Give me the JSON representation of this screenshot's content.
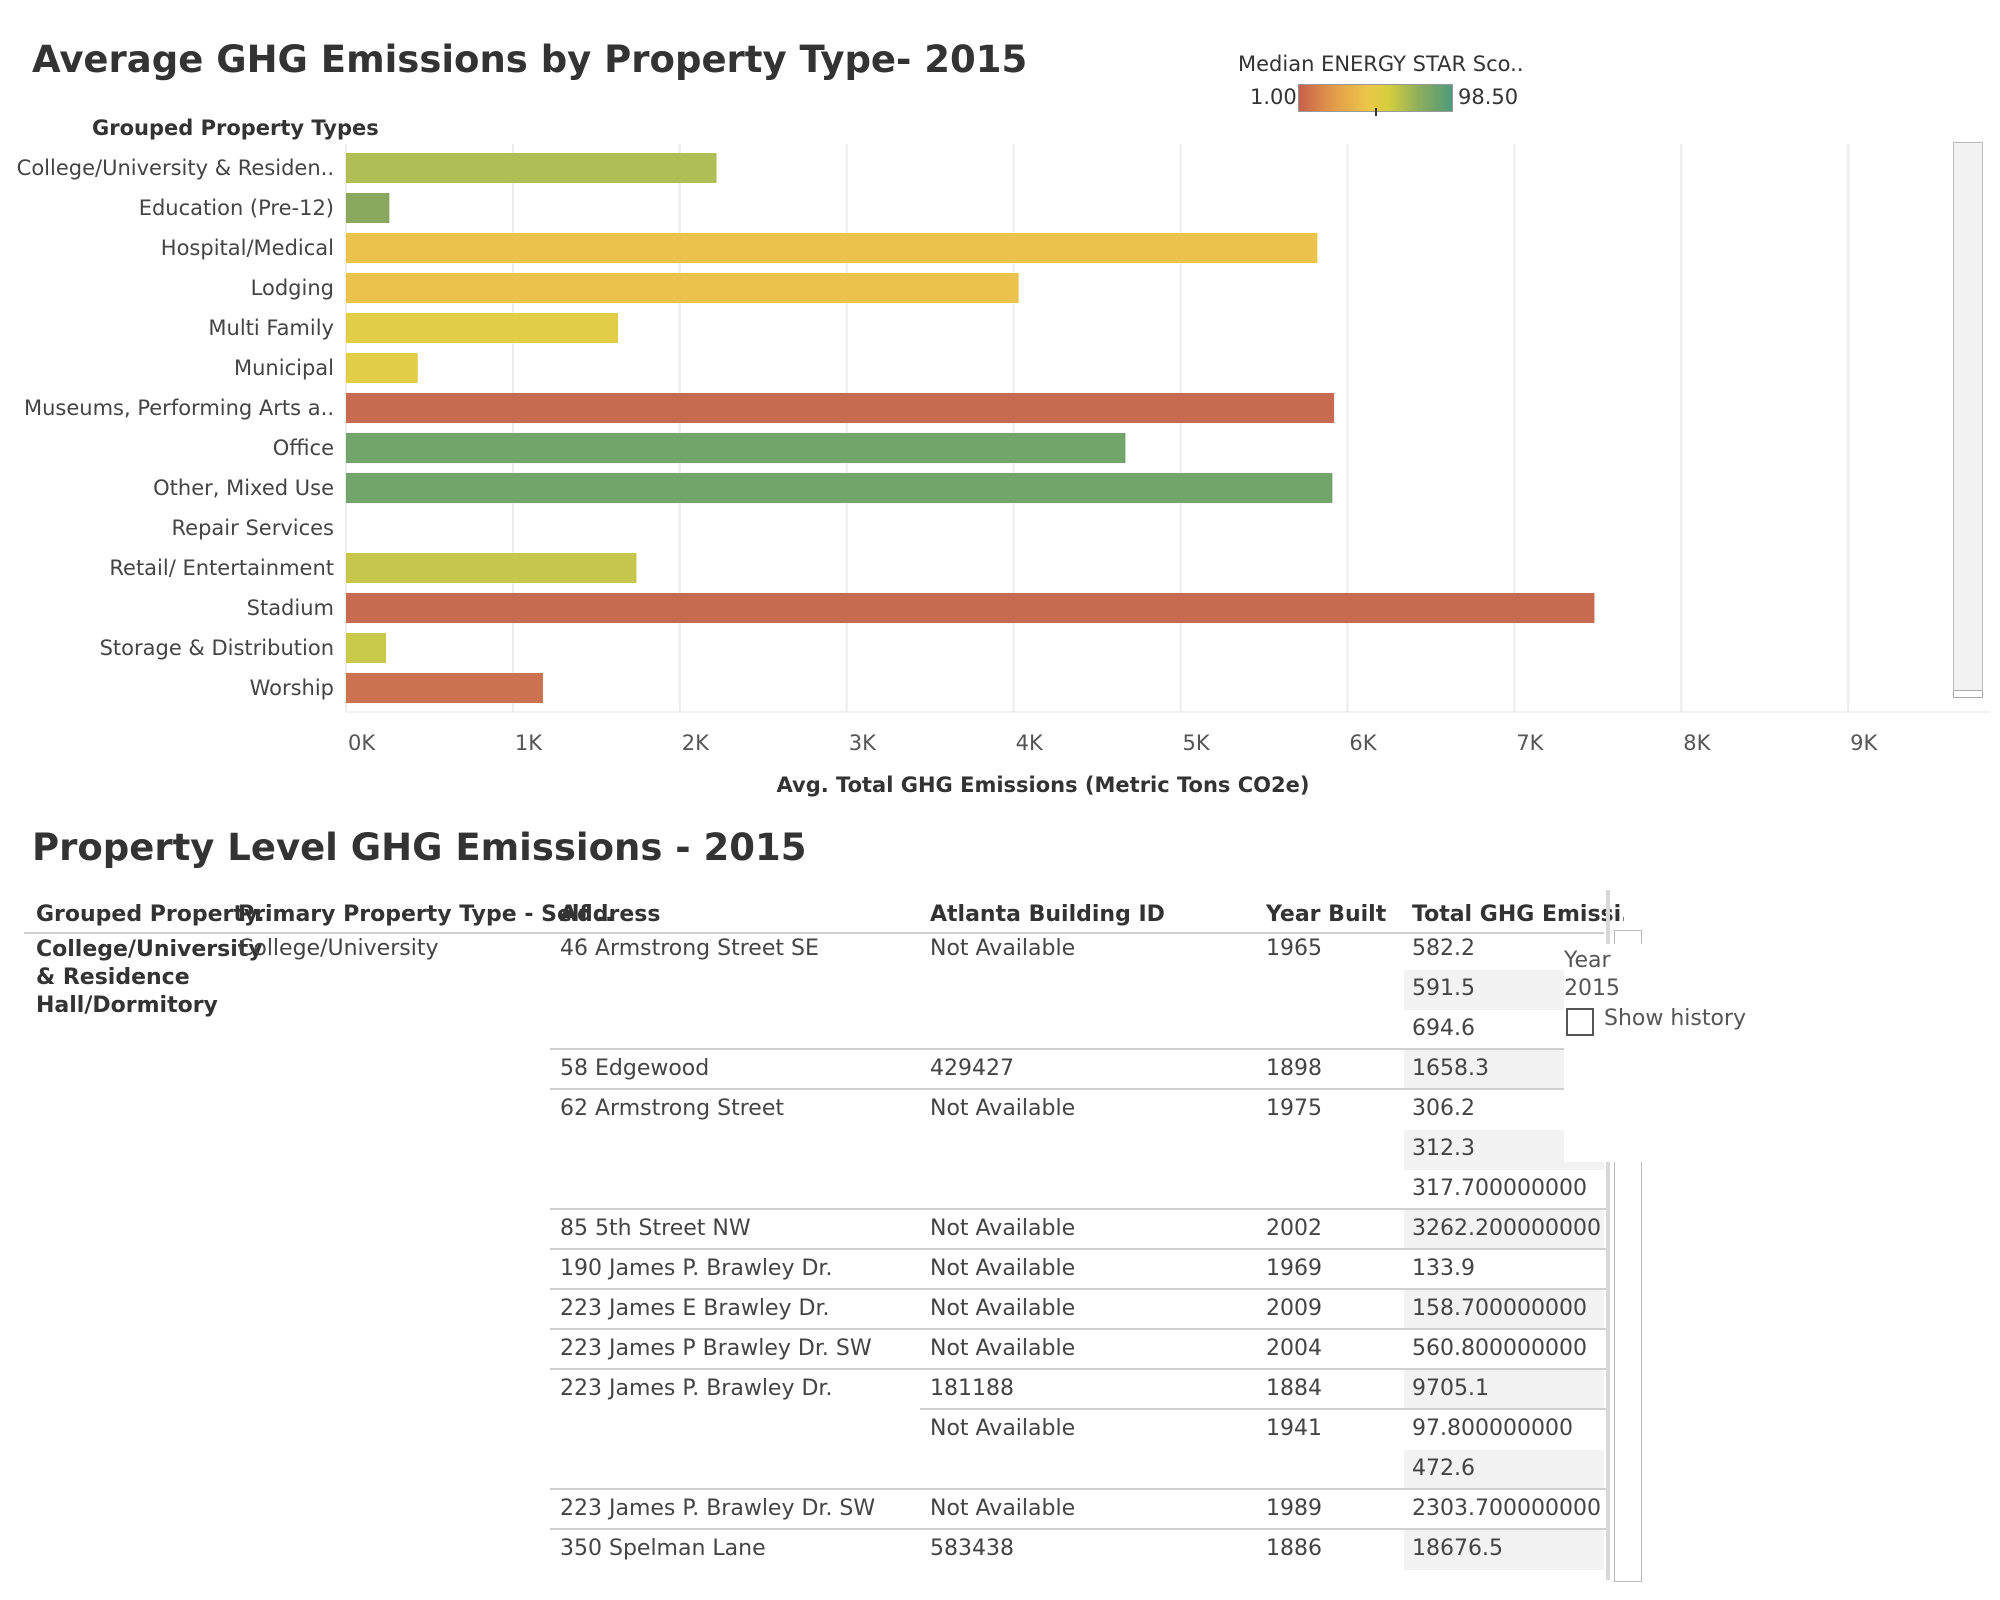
{
  "chart_title": "Average GHG Emissions by Property Type- 2015",
  "legend": {
    "title": "Median ENERGY STAR Sco..",
    "min_label": "1.00",
    "max_label": "98.50"
  },
  "chart_data": {
    "type": "bar",
    "orientation": "horizontal",
    "category_header": "Grouped Property Types",
    "categories": [
      "College/University & Residen..",
      "Education (Pre-12)",
      "Hospital/Medical",
      "Lodging",
      "Multi Family",
      "Municipal",
      "Museums, Performing Arts a..",
      "Office",
      "Other, Mixed Use",
      "Repair Services",
      "Retail/ Entertainment",
      "Stadium",
      "Storage & Distribution",
      "Worship"
    ],
    "values": [
      2220,
      260,
      5820,
      4030,
      1630,
      430,
      5920,
      4670,
      5910,
      0,
      1740,
      7480,
      240,
      1180
    ],
    "colors": [
      "#b1bd55",
      "#8aa860",
      "#ebc24b",
      "#ebc24b",
      "#e0cd48",
      "#e0cd48",
      "#c66a50",
      "#72a46b",
      "#72a46b",
      "#ffffff",
      "#c7c64c",
      "#c66a50",
      "#c9c94c",
      "#cb7350"
    ],
    "xlabel": "Avg. Total GHG Emissions (Metric Tons CO2e)",
    "xlim": [
      0,
      9850
    ],
    "xticks": [
      0,
      1000,
      2000,
      3000,
      4000,
      5000,
      6000,
      7000,
      8000,
      9000
    ],
    "xtick_labels": [
      "0K",
      "1K",
      "2K",
      "3K",
      "4K",
      "5K",
      "6K",
      "7K",
      "8K",
      "9K"
    ],
    "grid": true
  },
  "table_title": "Property Level GHG Emissions - 2015",
  "table": {
    "columns": [
      "Grouped Property..",
      "Primary Property Type - Self ..",
      "Address",
      "Atlanta Building ID",
      "Year Built",
      "Total GHG Emissi.."
    ],
    "group": "College/University & Residence Hall/Dormitory",
    "primary_type": "College/University",
    "rows": [
      {
        "address": "46 Armstrong Street SE",
        "id": "Not Available",
        "year": "1965",
        "ghg": "582.2"
      },
      {
        "address": "",
        "id": "",
        "year": "",
        "ghg": "591.5"
      },
      {
        "address": "",
        "id": "",
        "year": "",
        "ghg": "694.6"
      },
      {
        "address": "58 Edgewood",
        "id": "429427",
        "year": "1898",
        "ghg": "1658.3"
      },
      {
        "address": "62 Armstrong Street",
        "id": "Not Available",
        "year": "1975",
        "ghg": "306.2"
      },
      {
        "address": "",
        "id": "",
        "year": "",
        "ghg": "312.3"
      },
      {
        "address": "",
        "id": "",
        "year": "",
        "ghg": "317.700000000"
      },
      {
        "address": "85 5th Street NW",
        "id": "Not Available",
        "year": "2002",
        "ghg": "3262.200000000"
      },
      {
        "address": "190 James P. Brawley Dr.",
        "id": "Not Available",
        "year": "1969",
        "ghg": "133.9"
      },
      {
        "address": "223 James E Brawley Dr.",
        "id": "Not Available",
        "year": "2009",
        "ghg": "158.700000000"
      },
      {
        "address": "223 James P Brawley Dr. SW",
        "id": "Not Available",
        "year": "2004",
        "ghg": "560.800000000"
      },
      {
        "address": "223 James P. Brawley Dr.",
        "id": "181188",
        "year": "1884",
        "ghg": "9705.1"
      },
      {
        "address": "",
        "id": "Not Available",
        "year": "1941",
        "ghg": "97.800000000"
      },
      {
        "address": "",
        "id": "",
        "year": "",
        "ghg": "472.6"
      },
      {
        "address": "223 James P. Brawley Dr. SW",
        "id": "Not Available",
        "year": "1989",
        "ghg": "2303.700000000"
      },
      {
        "address": "350 Spelman Lane",
        "id": "583438",
        "year": "1886",
        "ghg": "18676.5"
      }
    ]
  },
  "year_filter": {
    "label": "Year",
    "value": "2015",
    "show_history_label": "Show history",
    "show_history_checked": false
  }
}
